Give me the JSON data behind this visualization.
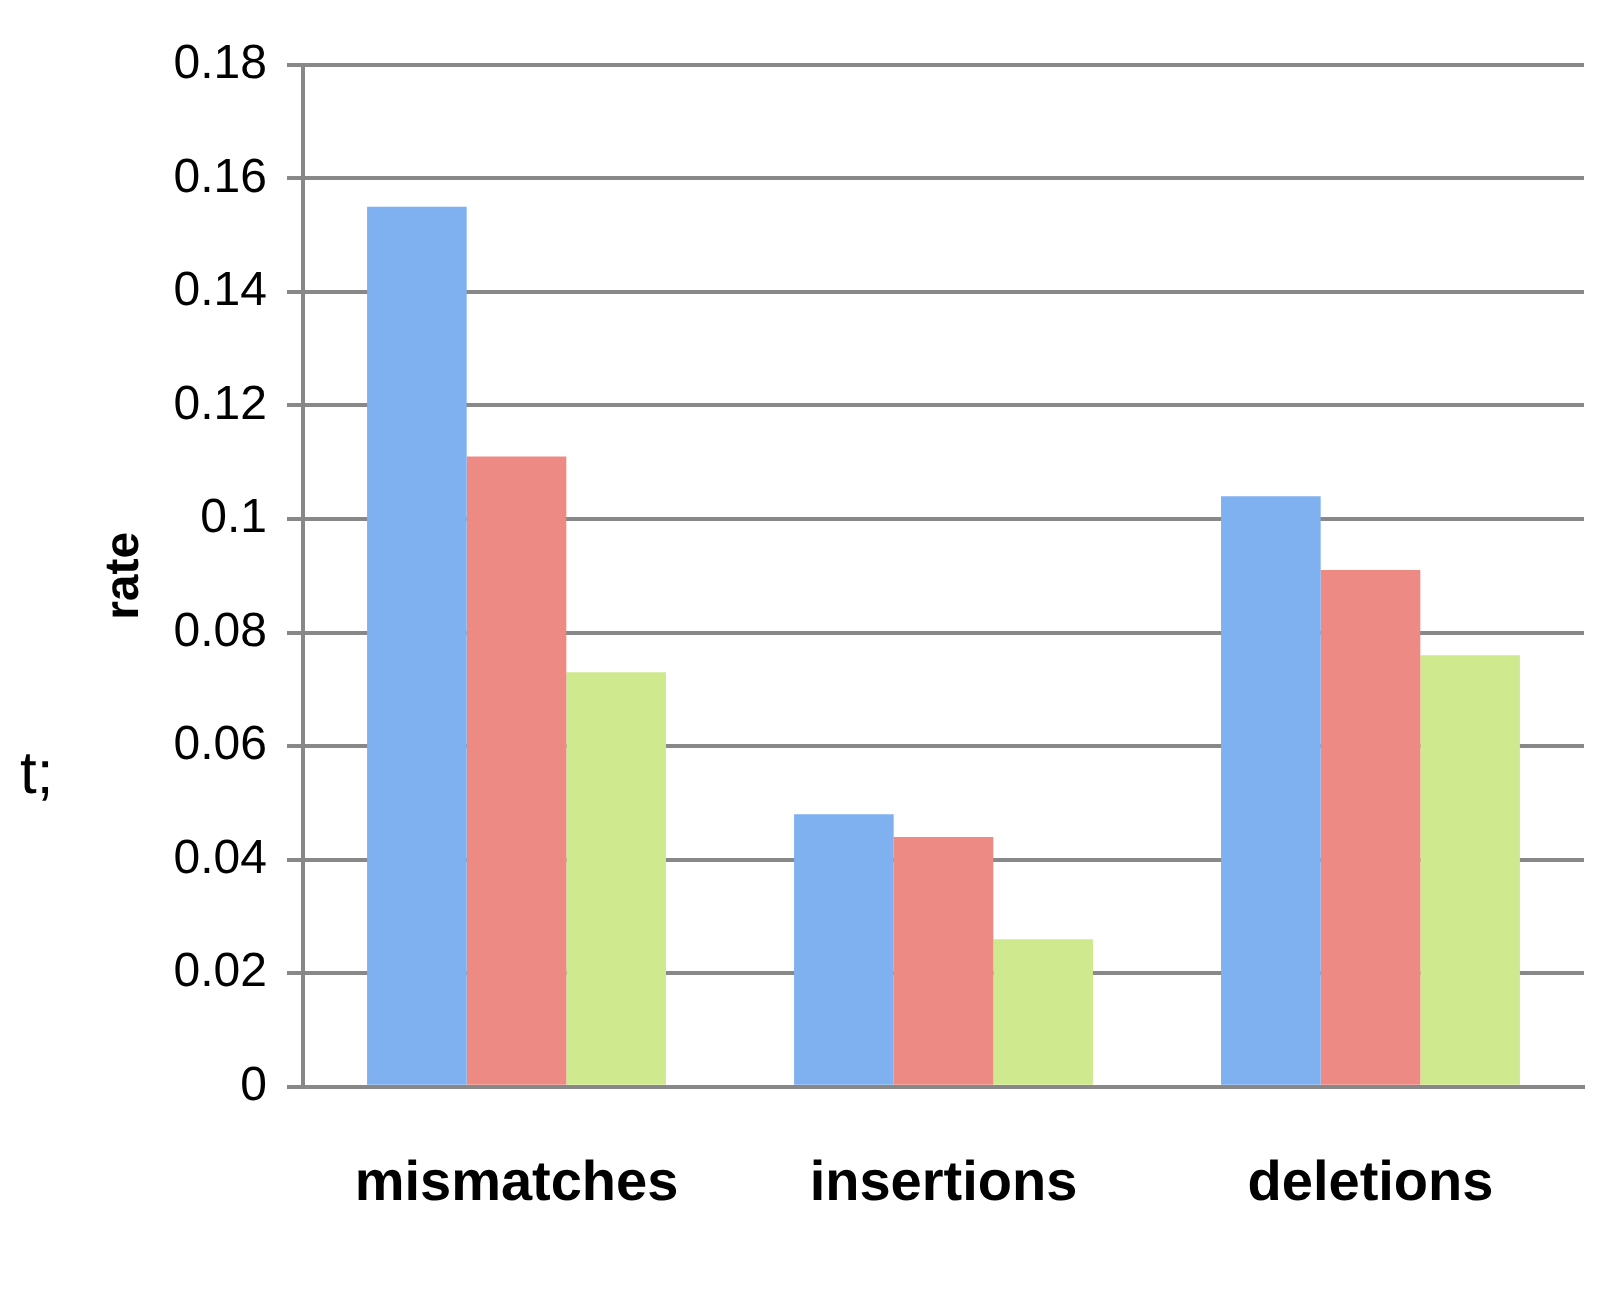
{
  "chart_data": {
    "type": "bar",
    "ylabel": "rate",
    "categories": [
      "mismatches",
      "insertions",
      "deletions"
    ],
    "series": [
      {
        "color": "#7fb0ef",
        "values": [
          0.155,
          0.048,
          0.104
        ]
      },
      {
        "color": "#ee8a84",
        "values": [
          0.111,
          0.044,
          0.091
        ]
      },
      {
        "color": "#cfe98f",
        "values": [
          0.073,
          0.026,
          0.076
        ]
      }
    ],
    "ylim": [
      0,
      0.18
    ],
    "yticks": [
      0,
      0.02,
      0.04,
      0.06,
      0.08,
      0.1,
      0.12,
      0.14,
      0.16,
      0.18
    ],
    "grid": "y",
    "legend": false,
    "annotations": [
      "t;"
    ]
  }
}
